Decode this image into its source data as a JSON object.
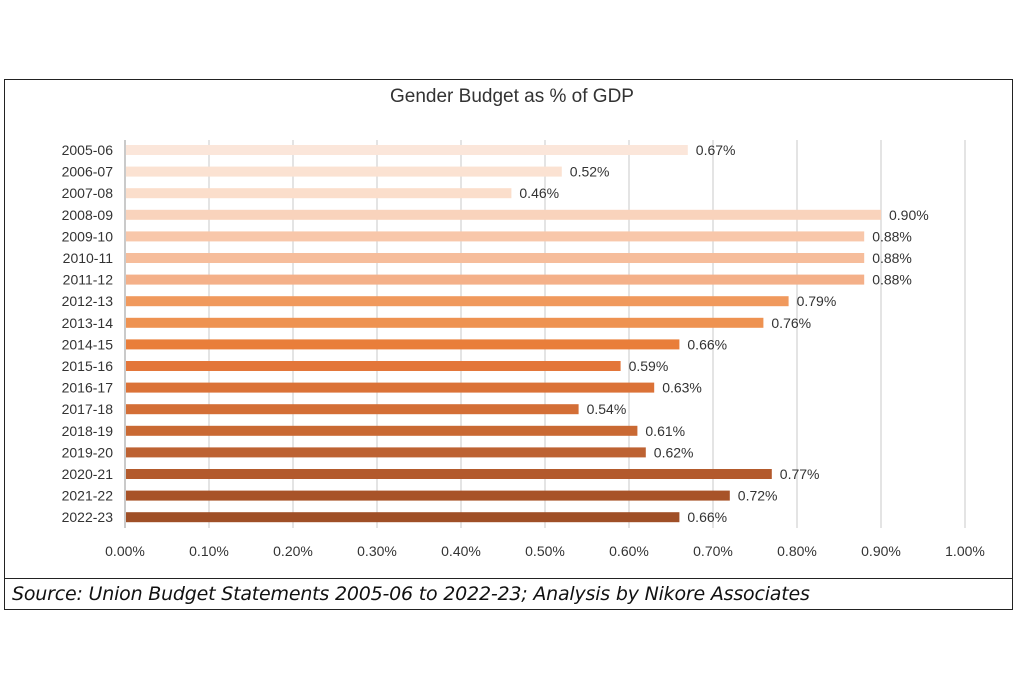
{
  "chart_data": {
    "type": "bar",
    "orientation": "horizontal",
    "title": "Gender Budget as % of GDP",
    "categories": [
      "2005-06",
      "2006-07",
      "2007-08",
      "2008-09",
      "2009-10",
      "2010-11",
      "2011-12",
      "2012-13",
      "2013-14",
      "2014-15",
      "2015-16",
      "2016-17",
      "2017-18",
      "2018-19",
      "2019-20",
      "2020-21",
      "2021-22",
      "2022-23"
    ],
    "values": [
      0.67,
      0.52,
      0.46,
      0.9,
      0.88,
      0.88,
      0.88,
      0.79,
      0.76,
      0.66,
      0.59,
      0.63,
      0.54,
      0.61,
      0.62,
      0.77,
      0.72,
      0.66
    ],
    "data_labels": [
      "0.67%",
      "0.52%",
      "0.46%",
      "0.90%",
      "0.88%",
      "0.88%",
      "0.88%",
      "0.79%",
      "0.76%",
      "0.66%",
      "0.59%",
      "0.63%",
      "0.54%",
      "0.61%",
      "0.62%",
      "0.77%",
      "0.72%",
      "0.66%"
    ],
    "colors": [
      "#fbe6da",
      "#fbe2d2",
      "#fbdecb",
      "#f9d3bc",
      "#f8c7aa",
      "#f6bd9b",
      "#f4b089",
      "#f0995d",
      "#ee9251",
      "#e97e3a",
      "#e3763a",
      "#db7237",
      "#d36e36",
      "#c96933",
      "#bd6232",
      "#b35a2c",
      "#a85328",
      "#9f4f27"
    ],
    "x_ticks": [
      "0.00%",
      "0.10%",
      "0.20%",
      "0.30%",
      "0.40%",
      "0.50%",
      "0.60%",
      "0.70%",
      "0.80%",
      "0.90%",
      "1.00%"
    ],
    "xlim": [
      0,
      1.0
    ],
    "grid": true,
    "xlabel": "",
    "ylabel": ""
  },
  "source_note": "Source: Union Budget Statements 2005-06 to 2022-23; Analysis by Nikore Associates"
}
